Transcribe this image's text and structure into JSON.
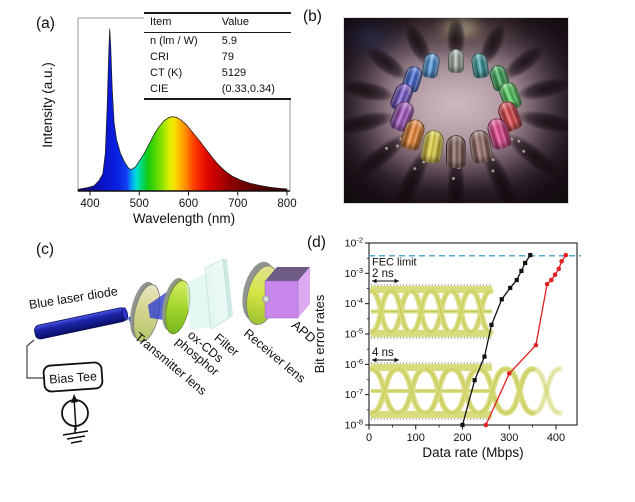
{
  "panel_a": {
    "label": "(a)",
    "xlabel": "Wavelength (nm)",
    "ylabel": "Intensity (a.u.)",
    "table": {
      "col_item": "Item",
      "col_value": "Value",
      "rows": [
        {
          "item": "n (lm / W)",
          "value": "5.9"
        },
        {
          "item": "CRI",
          "value": "79"
        },
        {
          "item": "CT (K)",
          "value": "5129"
        },
        {
          "item": "CIE",
          "value": "(0.33,0.34)"
        }
      ]
    }
  },
  "panel_b": {
    "label": "(b)",
    "capsules": [
      {
        "angle": 0,
        "color": "#a2b0a0"
      },
      {
        "angle": 26,
        "color": "#26969b"
      },
      {
        "angle": 52,
        "color": "#2aa44b"
      },
      {
        "angle": 77,
        "color": "#43cb4e"
      },
      {
        "angle": 102,
        "color": "#de3136"
      },
      {
        "angle": 128,
        "color": "#e63384"
      },
      {
        "angle": 154,
        "color": "#8d5f55"
      },
      {
        "angle": 180,
        "color": "#7c544b"
      },
      {
        "angle": 206,
        "color": "#e3cd2e"
      },
      {
        "angle": 231,
        "color": "#ee7a20"
      },
      {
        "angle": 257,
        "color": "#9c43bb"
      },
      {
        "angle": 282,
        "color": "#6b46c9"
      },
      {
        "angle": 307,
        "color": "#2f57cf"
      },
      {
        "angle": 333,
        "color": "#3f8edd"
      }
    ]
  },
  "panel_c": {
    "label": "(c)",
    "labels": {
      "laser": "Blue laser diode",
      "bias_tee": "Bias Tee",
      "transmitter_lens": "Transmitter lens",
      "phosphor_line1": "ox-CDs",
      "phosphor_line2": "phosphor",
      "filter": "Filter",
      "receiver_lens": "Receiver lens",
      "apd": "APD"
    }
  },
  "panel_d": {
    "label": "(d)",
    "xlabel": "Data rate (Mbps)",
    "ylabel": "Bit error rates",
    "fec_label": "FEC limit",
    "fec_color": "#3f9fd0",
    "eye2": "2 ns",
    "eye4": "4 ns"
  },
  "chart_data": [
    {
      "type": "area",
      "title": "White LED emission spectrum",
      "xlabel": "Wavelength (nm)",
      "ylabel": "Intensity (a.u.)",
      "xlim": [
        376,
        800
      ],
      "xticks": [
        400,
        500,
        600,
        700,
        800
      ],
      "points": [
        [
          376,
          0.01
        ],
        [
          395,
          0.02
        ],
        [
          408,
          0.03
        ],
        [
          418,
          0.06
        ],
        [
          426,
          0.1
        ],
        [
          431,
          0.22
        ],
        [
          435,
          0.5
        ],
        [
          438,
          0.8
        ],
        [
          440,
          0.95
        ],
        [
          442,
          0.85
        ],
        [
          445,
          0.6
        ],
        [
          449,
          0.4
        ],
        [
          454,
          0.3
        ],
        [
          462,
          0.22
        ],
        [
          470,
          0.17
        ],
        [
          478,
          0.135
        ],
        [
          484,
          0.125
        ],
        [
          492,
          0.14
        ],
        [
          500,
          0.175
        ],
        [
          510,
          0.22
        ],
        [
          520,
          0.275
        ],
        [
          530,
          0.33
        ],
        [
          540,
          0.375
        ],
        [
          550,
          0.41
        ],
        [
          560,
          0.43
        ],
        [
          568,
          0.435
        ],
        [
          576,
          0.43
        ],
        [
          585,
          0.415
        ],
        [
          595,
          0.39
        ],
        [
          605,
          0.355
        ],
        [
          615,
          0.32
        ],
        [
          625,
          0.285
        ],
        [
          638,
          0.235
        ],
        [
          650,
          0.19
        ],
        [
          662,
          0.15
        ],
        [
          675,
          0.115
        ],
        [
          690,
          0.085
        ],
        [
          705,
          0.065
        ],
        [
          725,
          0.045
        ],
        [
          745,
          0.032
        ],
        [
          765,
          0.022
        ],
        [
          785,
          0.016
        ],
        [
          800,
          0.012
        ]
      ],
      "spectral_stops": [
        [
          376,
          "#10006a"
        ],
        [
          430,
          "#0a14cc"
        ],
        [
          455,
          "#0a20e0"
        ],
        [
          475,
          "#1040f0"
        ],
        [
          486,
          "#00a8f8"
        ],
        [
          495,
          "#00e0d0"
        ],
        [
          505,
          "#00d878"
        ],
        [
          518,
          "#18cc10"
        ],
        [
          535,
          "#58d800"
        ],
        [
          550,
          "#a0e400"
        ],
        [
          562,
          "#e0ee00"
        ],
        [
          572,
          "#f8e000"
        ],
        [
          583,
          "#ffb400"
        ],
        [
          595,
          "#ff8800"
        ],
        [
          607,
          "#ff5000"
        ],
        [
          620,
          "#f82800"
        ],
        [
          638,
          "#e00800"
        ],
        [
          658,
          "#c00000"
        ],
        [
          680,
          "#980000"
        ],
        [
          710,
          "#700000"
        ],
        [
          750,
          "#500000"
        ],
        [
          800,
          "#360000"
        ]
      ]
    },
    {
      "type": "line",
      "title": "Bit error rate vs data rate",
      "xlabel": "Data rate (Mbps)",
      "ylabel": "Bit error rates",
      "xlim": [
        0,
        445
      ],
      "ylim": [
        1e-08,
        0.01
      ],
      "xticks": [
        0,
        100,
        200,
        300,
        400
      ],
      "yticks_exp": [
        -2,
        -3,
        -4,
        -5,
        -6,
        -7,
        -8
      ],
      "fec_limit": 0.0038,
      "series": [
        {
          "name": "2 ns",
          "color": "#111111",
          "marker": "square",
          "points": [
            [
              200,
              1e-08
            ],
            [
              226,
              3e-07
            ],
            [
              247,
              1.8e-06
            ],
            [
              262,
              2e-05
            ],
            [
              284,
              0.00014
            ],
            [
              302,
              0.00033
            ],
            [
              316,
              0.0006
            ],
            [
              326,
              0.0012
            ],
            [
              334,
              0.0022
            ],
            [
              345,
              0.004
            ]
          ]
        },
        {
          "name": "4 ns",
          "color": "#e02222",
          "marker": "circle",
          "points": [
            [
              250,
              1e-08
            ],
            [
              300,
              5e-07
            ],
            [
              357,
              4.3e-06
            ],
            [
              381,
              0.00044
            ],
            [
              390,
              0.0006
            ],
            [
              398,
              0.0009
            ],
            [
              406,
              0.0014
            ],
            [
              412,
              0.0025
            ],
            [
              421,
              0.004
            ]
          ]
        }
      ]
    }
  ]
}
